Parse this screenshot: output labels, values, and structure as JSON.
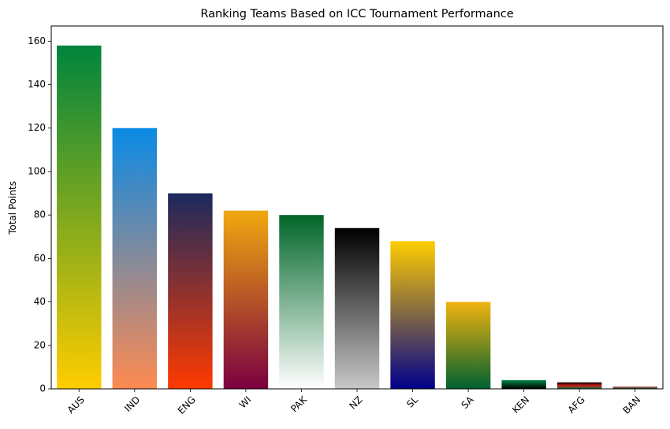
{
  "chart_data": {
    "type": "bar",
    "title": "Ranking Teams Based on ICC Tournament Performance",
    "xlabel": "",
    "ylabel": "Total Points",
    "ylim": [
      0,
      167
    ],
    "yticks": [
      0,
      20,
      40,
      60,
      80,
      100,
      120,
      140,
      160
    ],
    "grid": false,
    "categories": [
      "AUS",
      "IND",
      "ENG",
      "WI",
      "PAK",
      "NZ",
      "SL",
      "SA",
      "KEN",
      "AFG",
      "BAN"
    ],
    "values": [
      158,
      120,
      90,
      82,
      80,
      74,
      68,
      40,
      4,
      3,
      1
    ],
    "bar_gradients": [
      [
        "#00843d",
        "#ffcd00"
      ],
      [
        "#0a8ae6",
        "#ff8a50"
      ],
      [
        "#1b2a5e",
        "#ff3a00"
      ],
      [
        "#f0a80f",
        "#7a0040"
      ],
      [
        "#006629",
        "#ffffff"
      ],
      [
        "#000000",
        "#c8c8c8"
      ],
      [
        "#ffcd00",
        "#00008b"
      ],
      [
        "#f0b40f",
        "#006030"
      ],
      [
        "#008a48",
        "#000000"
      ],
      [
        "#000000",
        "#cf1a1a",
        "#007a36"
      ],
      [
        "#c23030",
        "#006a4e"
      ]
    ]
  }
}
